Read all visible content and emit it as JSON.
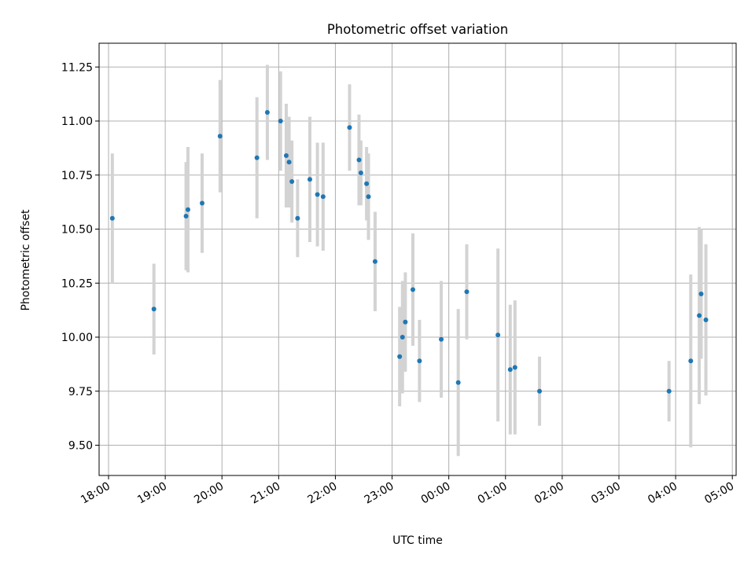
{
  "chart_data": {
    "type": "scatter",
    "title": "Photometric offset variation",
    "xlabel": "UTC time",
    "ylabel": "Photometric offset",
    "x_tick_labels": [
      "18:00",
      "19:00",
      "20:00",
      "21:00",
      "22:00",
      "23:00",
      "00:00",
      "01:00",
      "02:00",
      "03:00",
      "04:00",
      "05:00"
    ],
    "y_tick_labels": [
      "9.50",
      "9.75",
      "10.00",
      "10.25",
      "10.50",
      "10.75",
      "11.00",
      "11.25"
    ],
    "y_ticks": [
      9.5,
      9.75,
      10.0,
      10.25,
      10.5,
      10.75,
      11.0,
      11.25
    ],
    "xlim": [
      "17:50",
      "05:04"
    ],
    "ylim": [
      9.36,
      11.36
    ],
    "grid": true,
    "colors": {
      "point": "#1f77b4",
      "errorbar": "#d3d3d3",
      "grid": "#b0b0b0"
    },
    "points": [
      {
        "x": "18:04",
        "y": 10.55,
        "yerr": 0.3
      },
      {
        "x": "18:48",
        "y": 10.13,
        "yerr": 0.21
      },
      {
        "x": "19:22",
        "y": 10.56,
        "yerr": 0.25
      },
      {
        "x": "19:24",
        "y": 10.59,
        "yerr": 0.29
      },
      {
        "x": "19:39",
        "y": 10.62,
        "yerr": 0.23
      },
      {
        "x": "19:58",
        "y": 10.93,
        "yerr": 0.26
      },
      {
        "x": "20:37",
        "y": 10.83,
        "yerr": 0.28
      },
      {
        "x": "20:48",
        "y": 11.04,
        "yerr": 0.22
      },
      {
        "x": "21:02",
        "y": 11.0,
        "yerr": 0.23
      },
      {
        "x": "21:08",
        "y": 10.84,
        "yerr": 0.24
      },
      {
        "x": "21:11",
        "y": 10.81,
        "yerr": 0.21
      },
      {
        "x": "21:14",
        "y": 10.72,
        "yerr": 0.19
      },
      {
        "x": "21:20",
        "y": 10.55,
        "yerr": 0.18
      },
      {
        "x": "21:33",
        "y": 10.73,
        "yerr": 0.29
      },
      {
        "x": "21:41",
        "y": 10.66,
        "yerr": 0.24
      },
      {
        "x": "21:47",
        "y": 10.65,
        "yerr": 0.25
      },
      {
        "x": "22:15",
        "y": 10.97,
        "yerr": 0.2
      },
      {
        "x": "22:25",
        "y": 10.82,
        "yerr": 0.21
      },
      {
        "x": "22:27",
        "y": 10.76,
        "yerr": 0.15
      },
      {
        "x": "22:33",
        "y": 10.71,
        "yerr": 0.17
      },
      {
        "x": "22:35",
        "y": 10.65,
        "yerr": 0.2
      },
      {
        "x": "22:42",
        "y": 10.35,
        "yerr": 0.23
      },
      {
        "x": "23:08",
        "y": 9.91,
        "yerr": 0.23
      },
      {
        "x": "23:11",
        "y": 10.0,
        "yerr": 0.26
      },
      {
        "x": "23:14",
        "y": 10.07,
        "yerr": 0.23
      },
      {
        "x": "23:22",
        "y": 10.22,
        "yerr": 0.26
      },
      {
        "x": "23:29",
        "y": 9.89,
        "yerr": 0.19
      },
      {
        "x": "23:52",
        "y": 9.99,
        "yerr": 0.27
      },
      {
        "x": "00:10",
        "y": 9.79,
        "yerr": 0.34
      },
      {
        "x": "00:19",
        "y": 10.21,
        "yerr": 0.22
      },
      {
        "x": "00:52",
        "y": 10.01,
        "yerr": 0.4
      },
      {
        "x": "01:05",
        "y": 9.85,
        "yerr": 0.3
      },
      {
        "x": "01:10",
        "y": 9.86,
        "yerr": 0.31
      },
      {
        "x": "01:36",
        "y": 9.75,
        "yerr": 0.16
      },
      {
        "x": "03:53",
        "y": 9.75,
        "yerr": 0.14
      },
      {
        "x": "04:16",
        "y": 9.89,
        "yerr": 0.4
      },
      {
        "x": "04:25",
        "y": 10.1,
        "yerr": 0.41
      },
      {
        "x": "04:27",
        "y": 10.2,
        "yerr": 0.3
      },
      {
        "x": "04:32",
        "y": 10.08,
        "yerr": 0.35
      }
    ]
  }
}
